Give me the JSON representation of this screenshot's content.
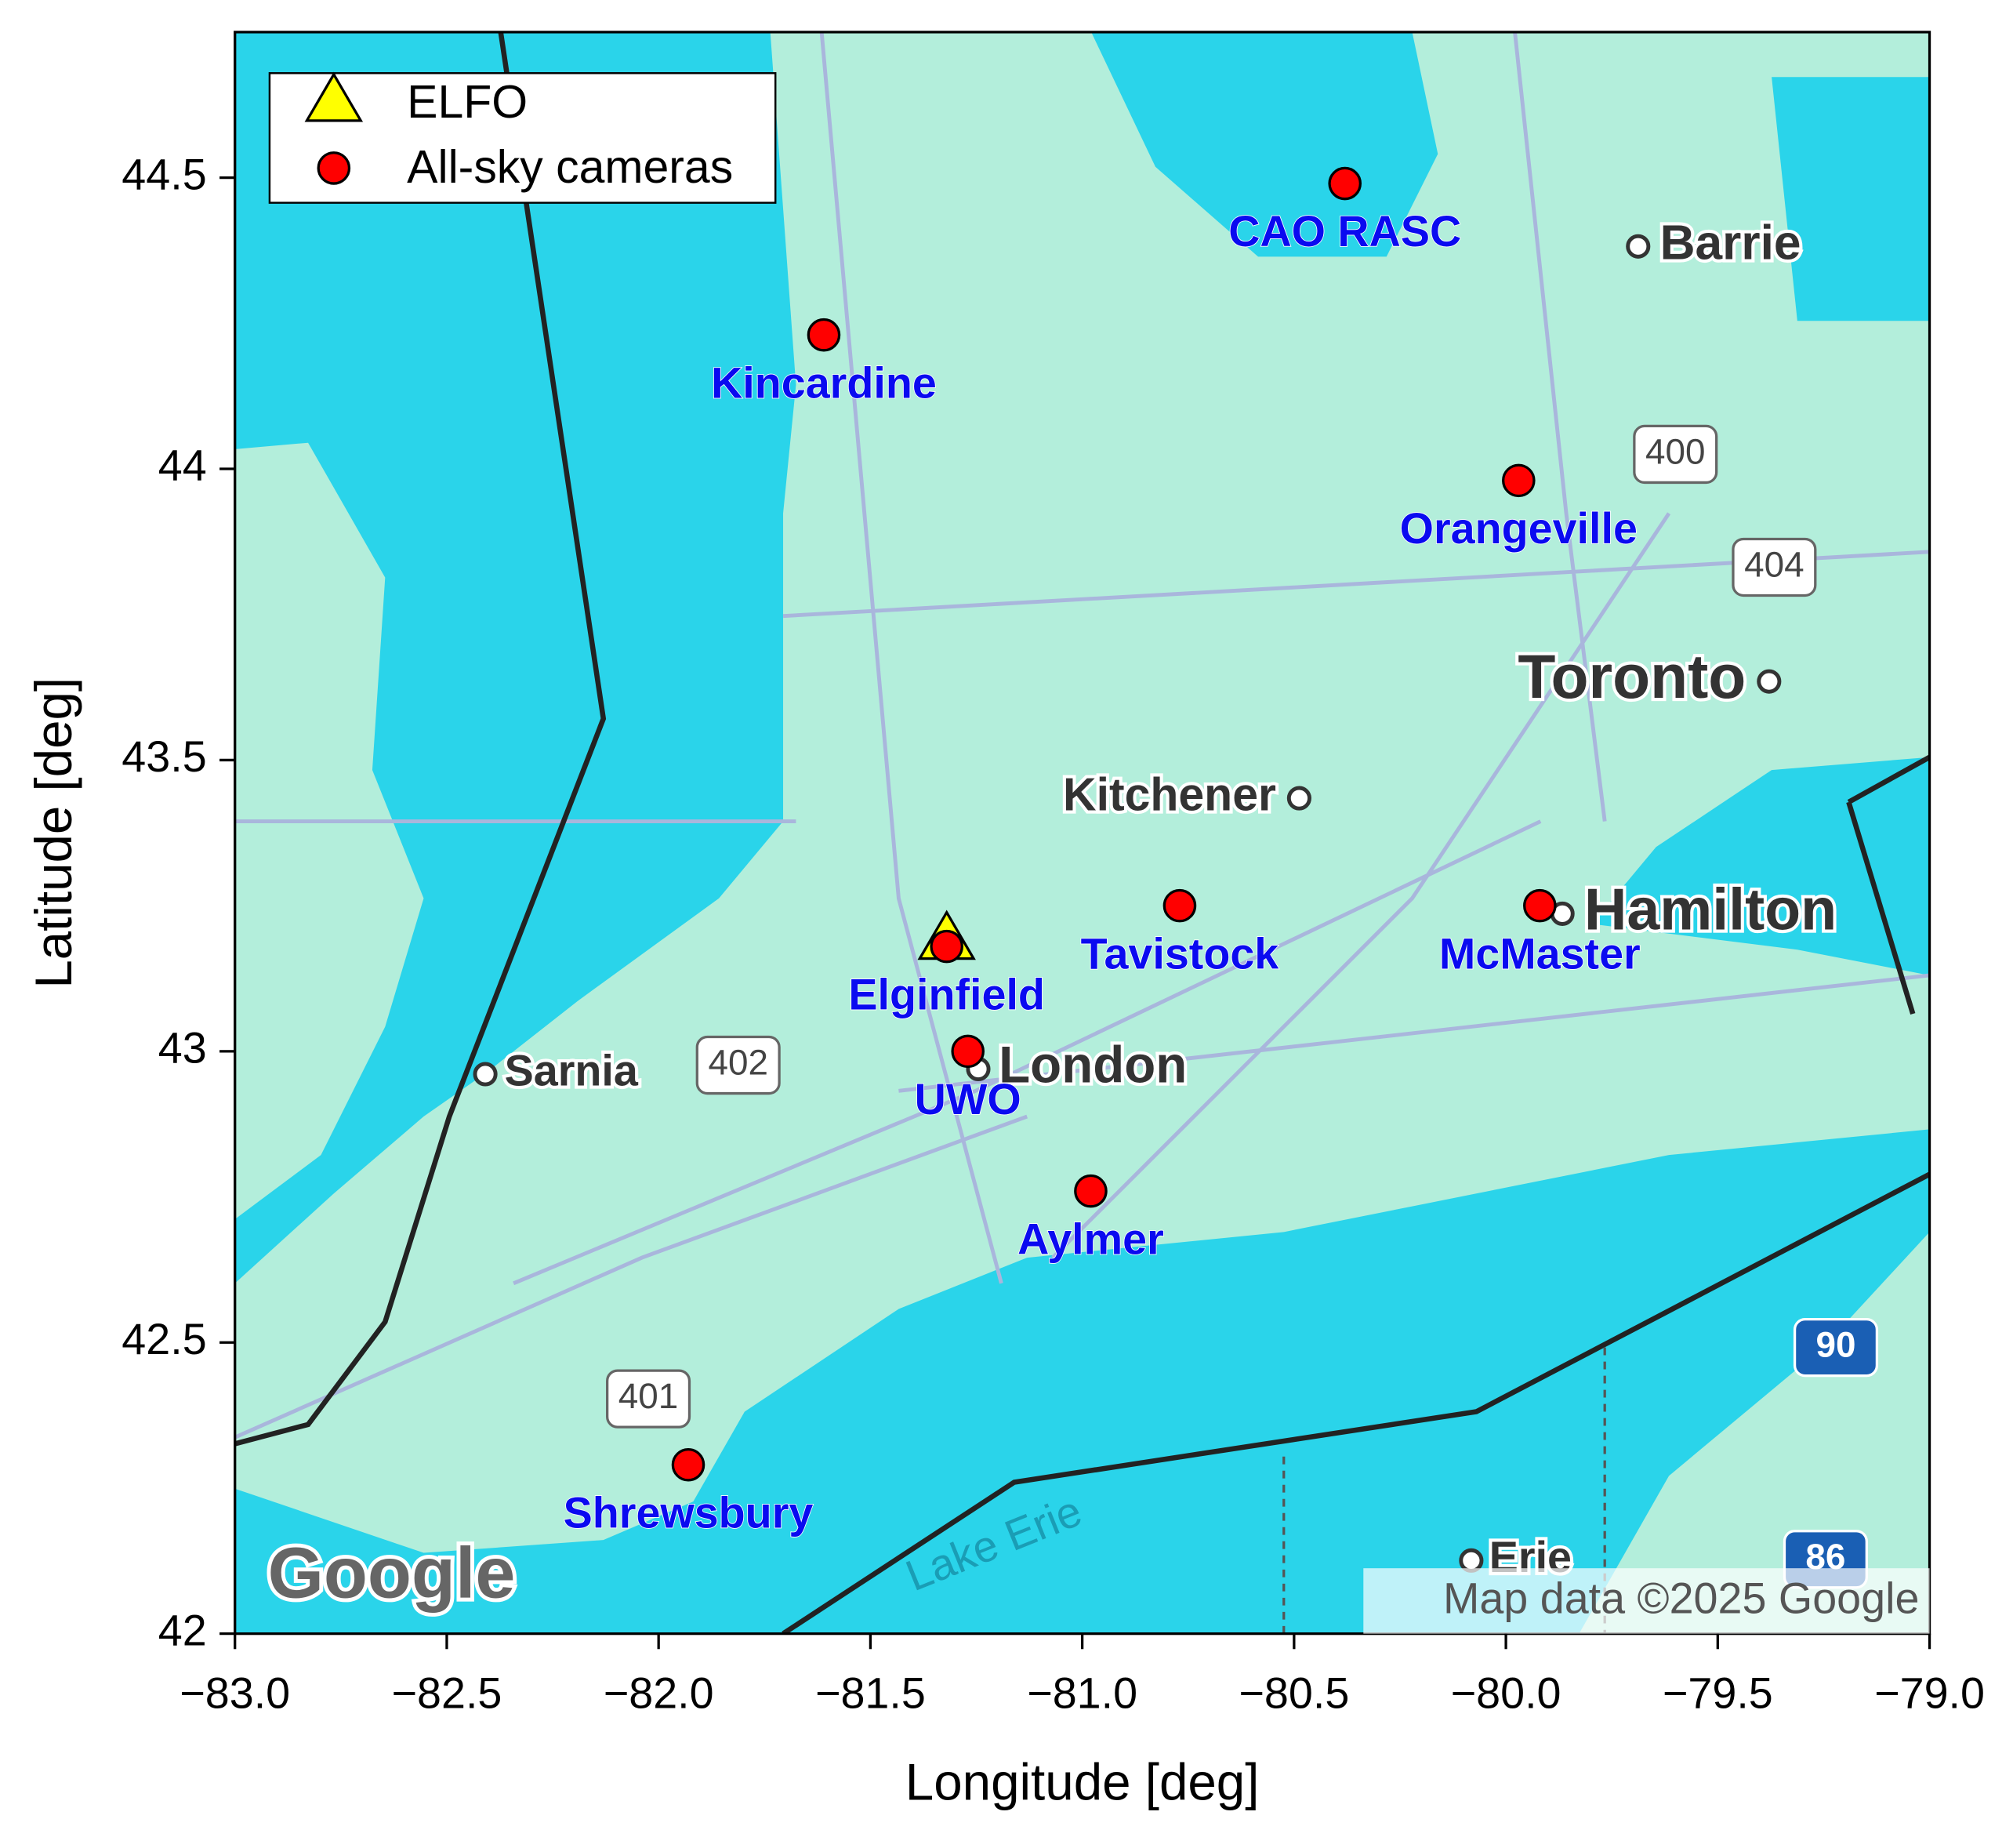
{
  "chart_data": {
    "type": "scatter",
    "xlabel": "Longitude [deg]",
    "ylabel": "Latitude [deg]",
    "xlim": [
      -83,
      -79
    ],
    "ylim": [
      42,
      44.75
    ],
    "xticks": [
      {
        "value": -83,
        "label": "−83.0"
      },
      {
        "value": -82.5,
        "label": "−82.5"
      },
      {
        "value": -82,
        "label": "−82.0"
      },
      {
        "value": -81.5,
        "label": "−81.5"
      },
      {
        "value": -81,
        "label": "−81.0"
      },
      {
        "value": -80.5,
        "label": "−80.5"
      },
      {
        "value": -80,
        "label": "−80.0"
      },
      {
        "value": -79.5,
        "label": "−79.5"
      },
      {
        "value": -79,
        "label": "−79.0"
      }
    ],
    "yticks": [
      42,
      42.5,
      43,
      43.5,
      44,
      44.5
    ],
    "legend": "upper left",
    "series": [
      {
        "name": "ELFO",
        "color": "#ffff00",
        "marker": "triangle",
        "x": [
          -81.32
        ],
        "y": [
          43.19
        ]
      },
      {
        "name": "All-sky cameras",
        "color": "#ff0000",
        "marker": "circle",
        "x": [
          -80.38,
          -81.61,
          -79.97,
          -80.77,
          -79.92,
          -81.32,
          -81.27,
          -80.98,
          -81.93
        ],
        "y": [
          44.49,
          44.23,
          43.98,
          43.25,
          43.25,
          43.18,
          43.0,
          42.76,
          42.29
        ],
        "labels": [
          "CAO RASC",
          "Kincardine",
          "Orangeville",
          "Tavistock",
          "McMaster",
          "Elginfield",
          "UWO",
          "Aylmer",
          "Shrewsbury"
        ],
        "label_color": "#0a0af0"
      }
    ]
  },
  "map_labels": {
    "cities": [
      "Barrie",
      "Toronto",
      "Kitchener",
      "Hamilton",
      "Sarnia",
      "London",
      "Erie"
    ],
    "highways": [
      "400",
      "404",
      "402",
      "401",
      "90",
      "86"
    ],
    "lake": "Lake Erie",
    "logo": "Google",
    "attribution": "Map data ©2025 Google"
  }
}
